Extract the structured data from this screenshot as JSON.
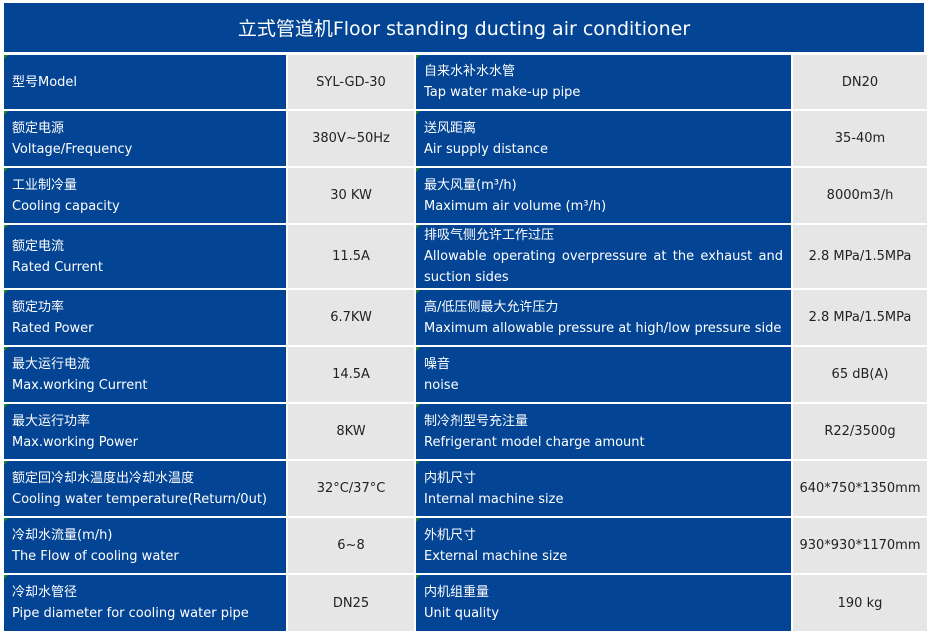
{
  "title": "立式管道机Floor standing ducting air conditioner",
  "rows": [
    {
      "l_zh": "型号Model",
      "l_en": "",
      "l_val": "SYL-GD-30",
      "r_zh": "自来水补水水管",
      "r_en": "Tap water make-up pipe",
      "r_val": "DN20"
    },
    {
      "l_zh": "额定电源",
      "l_en": "Voltage/Frequency",
      "l_val": "380V~50Hz",
      "r_zh": "送风距离",
      "r_en": "Air supply distance",
      "r_val": "35-40m"
    },
    {
      "l_zh": "工业制冷量",
      "l_en": "Cooling capacity",
      "l_val": "30 KW",
      "r_zh": "最大风量(m³/h)",
      "r_en": "Maximum air volume (m³/h)",
      "r_val": "8000m3/h"
    },
    {
      "l_zh": "额定电流",
      "l_en": "Rated Current",
      "l_val": "11.5A",
      "r_zh": "排吸气侧允许工作过压",
      "r_en": "Allowable operating overpressure at the exhaust and suction sides",
      "r_val": "2.8 MPa/1.5MPa"
    },
    {
      "l_zh": "额定功率",
      "l_en": "Rated Power",
      "l_val": "6.7KW",
      "r_zh": "高/低压侧最大允许压力",
      "r_en": "Maximum allowable pressure at high/low pressure side",
      "r_val": "2.8 MPa/1.5MPa"
    },
    {
      "l_zh": "最大运行电流",
      "l_en": "Max.working Current",
      "l_val": "14.5A",
      "r_zh": "噪音",
      "r_en": "noise",
      "r_val": "65 dB(A)"
    },
    {
      "l_zh": "最大运行功率",
      "l_en": "Max.working Power",
      "l_val": "8KW",
      "r_zh": "制冷剂型号充注量",
      "r_en": "Refrigerant model charge amount",
      "r_val": "R22/3500g"
    },
    {
      "l_zh": "额定回冷却水温度出冷却水温度",
      "l_en": "Cooling water temperature(Return/0ut)",
      "l_val": "32°C/37°C",
      "r_zh": "内机尺寸",
      "r_en": "Internal machine size",
      "r_val": "640*750*1350mm"
    },
    {
      "l_zh": "冷却水流量(m/h)",
      "l_en": "The Flow of cooling water",
      "l_val": "6~8",
      "r_zh": "外机尺寸",
      "r_en": "External machine size",
      "r_val": "930*930*1170mm"
    },
    {
      "l_zh": "冷却水管径",
      "l_en": "Pipe diameter for cooling water pipe",
      "l_val": "DN25",
      "r_zh": "内机组重量",
      "r_en": "Unit quality",
      "r_val": "190 kg"
    }
  ]
}
